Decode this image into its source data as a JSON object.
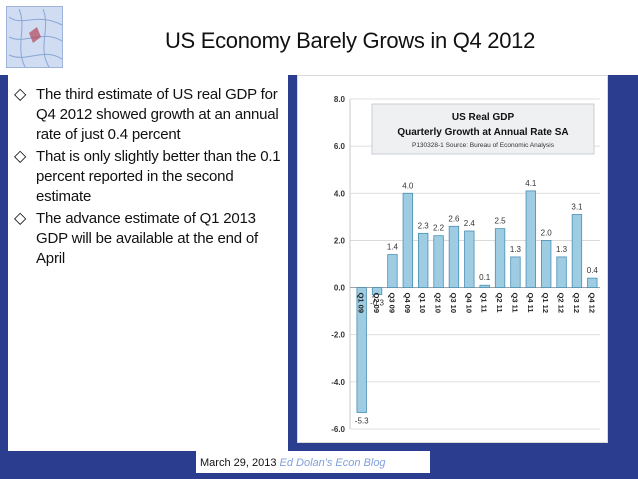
{
  "slide": {
    "title": "US Economy Barely Grows in Q4 2012",
    "bullets": [
      "The third estimate of US real GDP for Q4 2012 showed growth at an annual rate of just 0.4 percent",
      "That is only slightly better than the 0.1 percent reported in the second estimate",
      "The advance estimate of Q1 2013 GDP will be available at the end of April"
    ],
    "footer_date": "March 29, 2013",
    "footer_blog": "Ed Dolan's Econ Blog",
    "bullet_icon": "diamond-outline-icon",
    "logo_icon": "globe-map-icon"
  },
  "chart_data": {
    "type": "bar",
    "title": "US  Real GDP",
    "subtitle": "Quarterly Growth at Annual Rate SA",
    "source": "P130328-1 Source: Bureau of Economic Analysis",
    "categories": [
      "Q1 09",
      "Q2 09",
      "Q3 09",
      "Q4 09",
      "Q1 10",
      "Q2 10",
      "Q3 10",
      "Q4 10",
      "Q1 11",
      "Q2 11",
      "Q3 11",
      "Q4 11",
      "Q1 12",
      "Q2 12",
      "Q3 12",
      "Q4 12"
    ],
    "values": [
      -5.3,
      -0.3,
      1.4,
      4.0,
      2.3,
      2.2,
      2.6,
      2.4,
      0.1,
      2.5,
      1.3,
      4.1,
      2.0,
      1.3,
      3.1,
      0.4
    ],
    "value_labels": [
      "-5.3",
      "-0.3",
      "1.4",
      "4.0",
      "2.3",
      "2.2",
      "2.6",
      "2.4",
      "0.1",
      "2.5",
      "1.3",
      "4.1",
      "2.0",
      "1.3",
      "3.1",
      "0.4"
    ],
    "ylim": [
      -6.0,
      8.0
    ],
    "yticks": [
      "8.0",
      "6.0",
      "4.0",
      "2.0",
      "0.0",
      "-2.0",
      "-4.0",
      "-6.0"
    ],
    "grid": true,
    "bar_color": "#9ecde3",
    "bar_edge": "#4a8fb3"
  }
}
